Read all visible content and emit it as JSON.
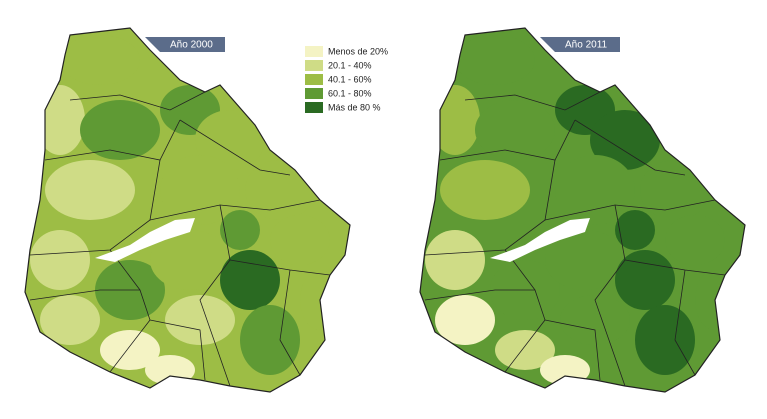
{
  "maps": [
    {
      "label": "Año 2000"
    },
    {
      "label": "Año 2011"
    }
  ],
  "legend": {
    "items": [
      {
        "label": "Menos de 20%",
        "color": "#f4f3c4"
      },
      {
        "label": "20.1 - 40%",
        "color": "#cfdc86"
      },
      {
        "label": "40.1 - 60%",
        "color": "#9dbd45"
      },
      {
        "label": "60.1 - 80%",
        "color": "#5f9a34"
      },
      {
        "label": "Más de 80 %",
        "color": "#2a6a22"
      }
    ]
  }
}
